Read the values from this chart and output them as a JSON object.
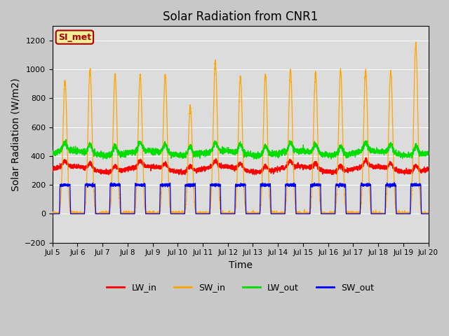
{
  "title": "Solar Radiation from CNR1",
  "xlabel": "Time",
  "ylabel": "Solar Radiation (W/m2)",
  "ylim": [
    -200,
    1300
  ],
  "yticks": [
    -200,
    0,
    200,
    400,
    600,
    800,
    1000,
    1200
  ],
  "xlim_days": [
    5.0,
    20.0
  ],
  "xtick_days": [
    5,
    6,
    7,
    8,
    9,
    10,
    11,
    12,
    13,
    14,
    15,
    16,
    17,
    18,
    19,
    20
  ],
  "xtick_labels": [
    "Jul 5",
    "Jul 6",
    "Jul 7",
    "Jul 8",
    "Jul 9",
    "Jul 10",
    "Jul 11",
    "Jul 12",
    "Jul 13",
    "Jul 14",
    "Jul 15",
    "Jul 16",
    "Jul 17",
    "Jul 18",
    "Jul 19",
    "Jul 20"
  ],
  "annotation_text": "SI_met",
  "annotation_bg": "#EEEE99",
  "annotation_edge": "#AA0000",
  "colors": {
    "LW_in": "#FF0000",
    "SW_in": "#FFA500",
    "LW_out": "#00DD00",
    "SW_out": "#0000FF"
  },
  "background_color": "#DCDCDC",
  "fig_background": "#C8C8C8",
  "grid_color": "#FFFFFF",
  "title_fontsize": 12,
  "axis_label_fontsize": 10
}
